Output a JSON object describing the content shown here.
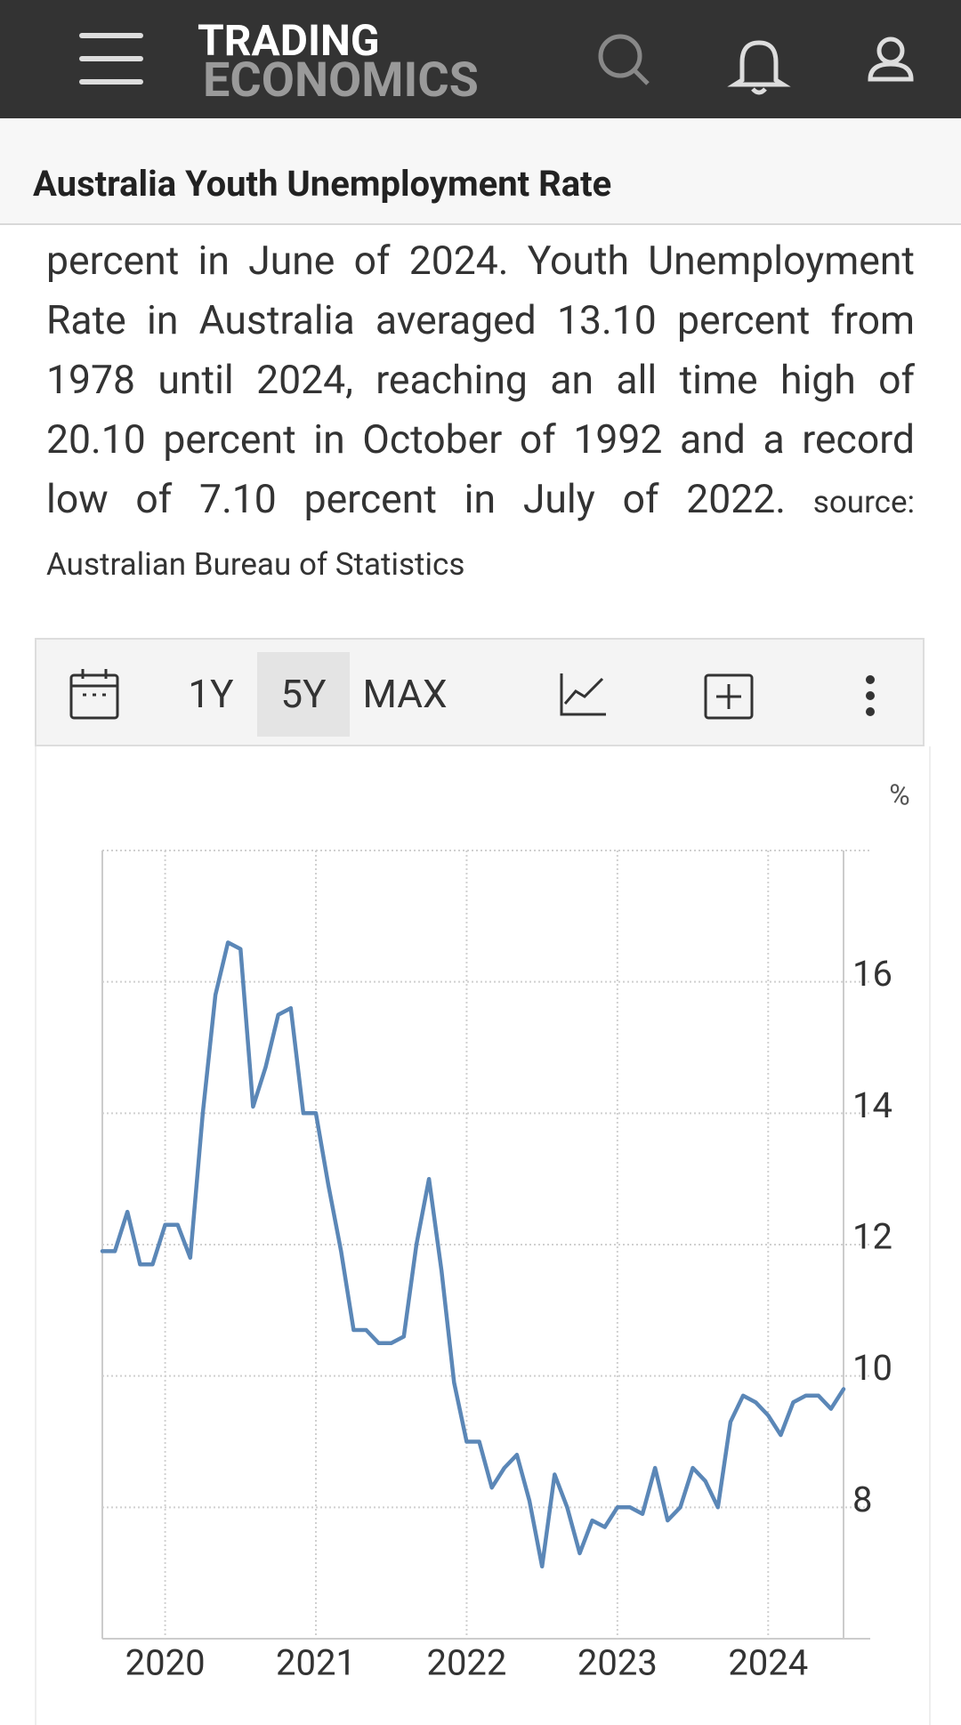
{
  "header": {
    "logo_top": "TRADING",
    "logo_bottom": "ECONOMICS"
  },
  "title": "Australia Youth Unemployment Rate",
  "description": "percent in June of 2024. Youth Unemployment Rate in Australia averaged 13.10 percent from 1978 until 2024, reaching an all time high of 20.10 percent in October of 1992 and a record low of 7.10 percent in July of 2022.",
  "source": "source: Australian Bureau of Statistics",
  "toolbar": {
    "ranges": [
      "1Y",
      "5Y",
      "MAX"
    ],
    "selected": "5Y"
  },
  "chart_data": {
    "type": "line",
    "ylabel": "%",
    "categories": [
      null,
      null,
      null,
      null,
      null,
      "2020",
      null,
      null,
      null,
      null,
      null,
      null,
      null,
      null,
      null,
      null,
      null,
      "2021",
      null,
      null,
      null,
      null,
      null,
      null,
      null,
      null,
      null,
      null,
      null,
      "2022",
      null,
      null,
      null,
      null,
      null,
      null,
      null,
      null,
      null,
      null,
      null,
      "2023",
      null,
      null,
      null,
      null,
      null,
      null,
      null,
      null,
      null,
      null,
      null,
      "2024",
      null,
      null,
      null,
      null,
      null,
      null
    ],
    "values": [
      11.9,
      11.9,
      12.5,
      11.7,
      11.7,
      12.3,
      12.3,
      11.8,
      14.0,
      15.8,
      16.6,
      16.5,
      14.1,
      14.7,
      15.5,
      15.6,
      14.0,
      14.0,
      12.9,
      11.9,
      10.7,
      10.7,
      10.5,
      10.5,
      10.6,
      12.0,
      13.0,
      11.6,
      9.9,
      9.0,
      9.0,
      8.3,
      8.6,
      8.8,
      8.1,
      7.1,
      8.5,
      8.0,
      7.3,
      7.8,
      7.7,
      8.0,
      8.0,
      7.9,
      8.6,
      7.8,
      8.0,
      8.6,
      8.4,
      8.0,
      9.3,
      9.7,
      9.6,
      9.4,
      9.1,
      9.6,
      9.7,
      9.7,
      9.5,
      9.8
    ],
    "color": "#5b87b7",
    "ylim": [
      6,
      18
    ],
    "yticks": [
      8,
      10,
      12,
      14,
      16
    ],
    "grid": true,
    "y_axis_side": "right"
  }
}
